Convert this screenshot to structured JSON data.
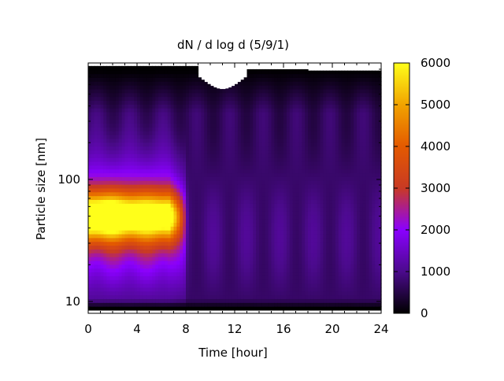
{
  "chart_data": {
    "type": "heatmap",
    "title": "dN / d log d (5/9/1)",
    "xlabel": "Time [hour]",
    "ylabel": "Particle size [nm]",
    "xlim": [
      0,
      24
    ],
    "x_ticks": [
      0,
      4,
      8,
      12,
      16,
      20,
      24
    ],
    "y_scale": "log",
    "ylim": [
      8,
      900
    ],
    "y_tick_labels": [
      {
        "value": 10,
        "label": "10"
      },
      {
        "value": 100,
        "label": "100"
      }
    ],
    "colorbar": {
      "colormap": "black-purple-red-orange-yellow",
      "range": [
        0,
        6000
      ],
      "ticks": [
        0,
        1000,
        2000,
        3000,
        4000,
        5000,
        6000
      ],
      "colors": [
        "#000000",
        "#4b0a8c",
        "#8a00ff",
        "#c93a24",
        "#e45a00",
        "#f1a300",
        "#ffff1a"
      ]
    },
    "features": [
      {
        "description_type": "mode",
        "time_range_h": [
          0,
          8
        ],
        "size_center_nm": 50,
        "peak_value": 5000
      },
      {
        "description_type": "background",
        "time_range_h": [
          8.5,
          24
        ],
        "value_approx": 800
      }
    ]
  }
}
